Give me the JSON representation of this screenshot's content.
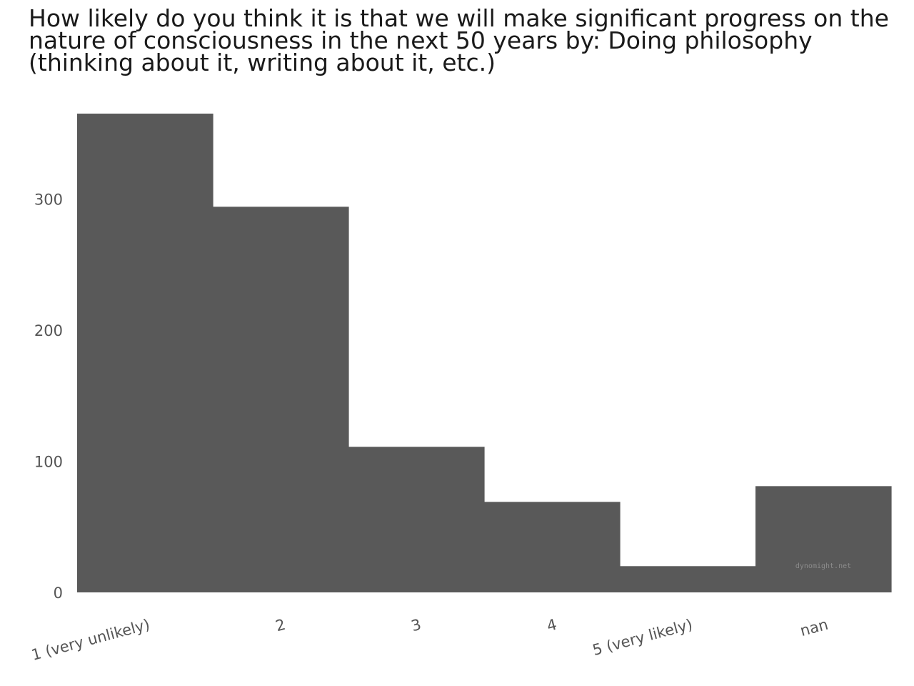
{
  "chart_data": {
    "type": "bar",
    "title": "How likely do you think it is that we will make significant progress on the nature of consciousness in the next 50 years by: Doing philosophy (thinking about it, writing about it, etc.)",
    "categories": [
      "1 (very unlikely)",
      "2",
      "3",
      "4",
      "5 (very likely)",
      "nan"
    ],
    "values": [
      365,
      294,
      111,
      69,
      20,
      81
    ],
    "yticks": [
      0,
      100,
      200,
      300
    ],
    "ylim": [
      0,
      365
    ],
    "xlabel": "",
    "ylabel": "",
    "grid": false,
    "bar_color": "#595959"
  },
  "watermark": "dynomight.net"
}
